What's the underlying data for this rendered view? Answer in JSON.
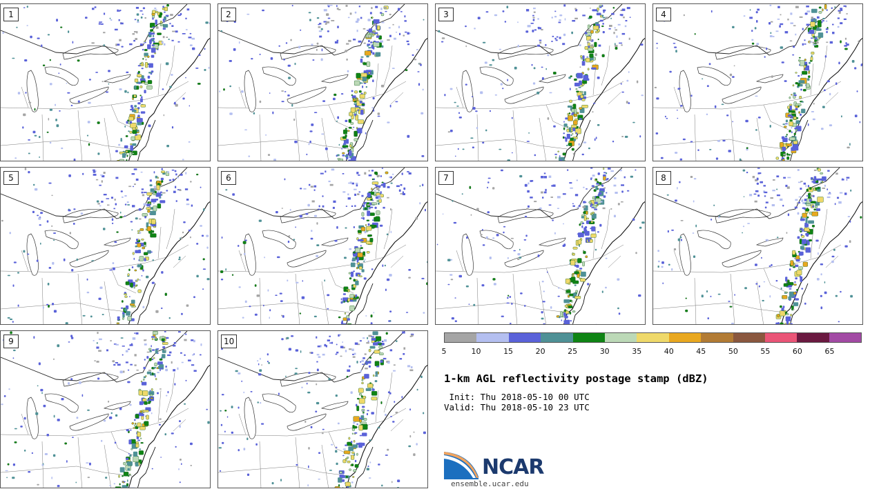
{
  "panels": [
    "1",
    "2",
    "3",
    "4",
    "5",
    "6",
    "7",
    "8",
    "9",
    "10"
  ],
  "colorbar": {
    "colors": [
      "#a5a5a5",
      "#b4bff0",
      "#5a62d9",
      "#4f9196",
      "#0f8414",
      "#bcd9b7",
      "#efd96a",
      "#e9a820",
      "#b27b34",
      "#8a573e",
      "#ea5577",
      "#6a1940",
      "#a24aa4"
    ],
    "ticks": [
      "5",
      "10",
      "15",
      "20",
      "25",
      "30",
      "35",
      "40",
      "45",
      "50",
      "55",
      "60",
      "65"
    ]
  },
  "title": "1-km AGL reflectivity postage stamp (dBZ)",
  "init": " Init: Thu 2018-05-10 00 UTC",
  "valid": "Valid: Thu 2018-05-10 23 UTC",
  "logo": {
    "word": "NCAR",
    "url": "ensemble.ucar.edu",
    "colors": {
      "blue": "#1c3a6e",
      "orange": "#f0a35e",
      "sky": "#2f86c8"
    }
  }
}
